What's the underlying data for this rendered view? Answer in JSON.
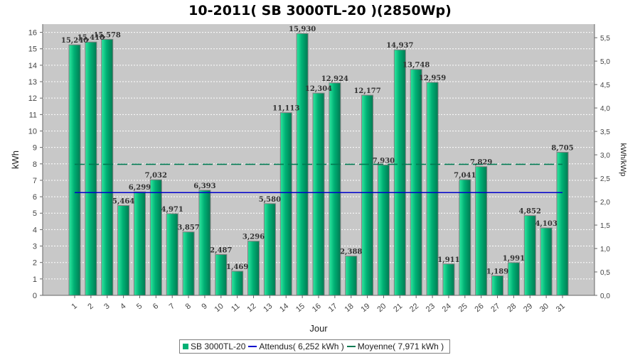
{
  "chart_data": {
    "type": "bar",
    "title": "10-2011( SB 3000TL-20 )(2850Wp)",
    "xlabel": "Jour",
    "ylabel": "kWh",
    "y2label": "kWh/kWp",
    "ylim": [
      0,
      16.5
    ],
    "y_ticks": [
      "0",
      "1",
      "2",
      "3",
      "4",
      "5",
      "6",
      "7",
      "8",
      "9",
      "10",
      "11",
      "12",
      "13",
      "14",
      "15",
      "16"
    ],
    "y2_ticks": [
      "0,0",
      "0,5",
      "1,0",
      "1,5",
      "2,0",
      "2,5",
      "3,0",
      "3,5",
      "4,0",
      "4,5",
      "5,0",
      "5,5"
    ],
    "categories": [
      "1",
      "2",
      "3",
      "4",
      "5",
      "6",
      "7",
      "8",
      "9",
      "10",
      "11",
      "12",
      "13",
      "14",
      "15",
      "16",
      "17",
      "18",
      "19",
      "20",
      "21",
      "22",
      "23",
      "24",
      "25",
      "26",
      "27",
      "28",
      "29",
      "30",
      "31"
    ],
    "series": [
      {
        "name": "SB 3000TL-20",
        "values": [
          15.24,
          15.41,
          15.578,
          5.464,
          6.299,
          7.032,
          4.971,
          3.857,
          6.393,
          2.487,
          1.469,
          3.296,
          5.58,
          11.113,
          15.93,
          12.304,
          12.924,
          2.388,
          12.177,
          7.93,
          14.937,
          13.748,
          12.959,
          1.911,
          7.041,
          7.829,
          1.189,
          1.991,
          4.852,
          4.103,
          8.705
        ],
        "labels": [
          "15,240",
          "15,410",
          "15,578",
          "5,464",
          "6,299",
          "7,032",
          "4,971",
          "3,857",
          "6,393",
          "2,487",
          "1,469",
          "3,296",
          "5,580",
          "11,113",
          "15,930",
          "12,304",
          "12,924",
          "2,388",
          "12,177",
          "7,930",
          "14,937",
          "13,748",
          "12,959",
          "1,911",
          "7,041",
          "7,829",
          "1,189",
          "1,991",
          "4,852",
          "4,103",
          "8,705"
        ]
      }
    ],
    "reference_lines": [
      {
        "name": "Attendus( 6,252 kWh )",
        "value": 6.252
      },
      {
        "name": "Moyenne( 7,971 kWh )",
        "value": 7.971
      }
    ],
    "grid": true,
    "legend_position": "bottom"
  },
  "colors": {
    "bar_light": "#2ee8a0",
    "bar_main": "#00b074",
    "bar_dark": "#007a52",
    "plot_bg": "#c8c8c8",
    "grid": "#ffffff",
    "attendus_line": "#0000cc",
    "moyenne_line": "#007a52"
  }
}
